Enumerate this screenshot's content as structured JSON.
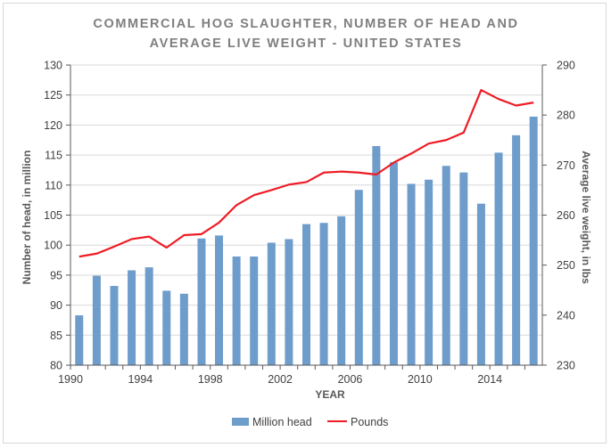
{
  "chart_data": {
    "type": "bar",
    "title_lines": [
      "COMMERCIAL HOG SLAUGHTER, NUMBER OF HEAD AND",
      "AVERAGE LIVE WEIGHT - UNITED STATES"
    ],
    "xlabel": "YEAR",
    "ylabel": "Number of head, in million",
    "y2label": "Average live weight, in lbs",
    "x": [
      1990,
      1991,
      1992,
      1993,
      1994,
      1995,
      1996,
      1997,
      1998,
      1999,
      2000,
      2001,
      2002,
      2003,
      2004,
      2005,
      2006,
      2007,
      2008,
      2009,
      2010,
      2011,
      2012,
      2013,
      2014,
      2015,
      2016
    ],
    "x_tick_labels": [
      "1990",
      "1994",
      "1998",
      "2002",
      "2006",
      "2010",
      "2014"
    ],
    "ylim": [
      80,
      130
    ],
    "y_ticks": [
      80,
      85,
      90,
      95,
      100,
      105,
      110,
      115,
      120,
      125,
      130
    ],
    "y2lim": [
      230,
      290
    ],
    "y2_ticks": [
      230,
      240,
      250,
      260,
      270,
      280,
      290
    ],
    "grid": "horizontal",
    "legend_position": "bottom",
    "series": [
      {
        "name": "Million head",
        "type": "bar",
        "axis": "left",
        "color": "#6e9ccb",
        "values": [
          88.3,
          94.9,
          93.2,
          95.8,
          96.3,
          92.4,
          91.9,
          101.1,
          101.6,
          98.1,
          98.1,
          100.4,
          101.0,
          103.5,
          103.7,
          104.8,
          109.2,
          116.5,
          113.8,
          110.2,
          110.9,
          113.2,
          112.1,
          106.9,
          115.4,
          118.3,
          121.4
        ]
      },
      {
        "name": "Pounds",
        "type": "line",
        "axis": "right",
        "color": "#ee1c25",
        "values": [
          251.7,
          252.3,
          253.7,
          255.2,
          255.7,
          253.5,
          256.0,
          256.2,
          258.5,
          262.0,
          264.0,
          265.0,
          266.1,
          266.6,
          268.5,
          268.7,
          268.5,
          268.1,
          270.5,
          272.3,
          274.3,
          275.0,
          276.5,
          285.0,
          283.2,
          281.9,
          282.5
        ]
      }
    ]
  }
}
